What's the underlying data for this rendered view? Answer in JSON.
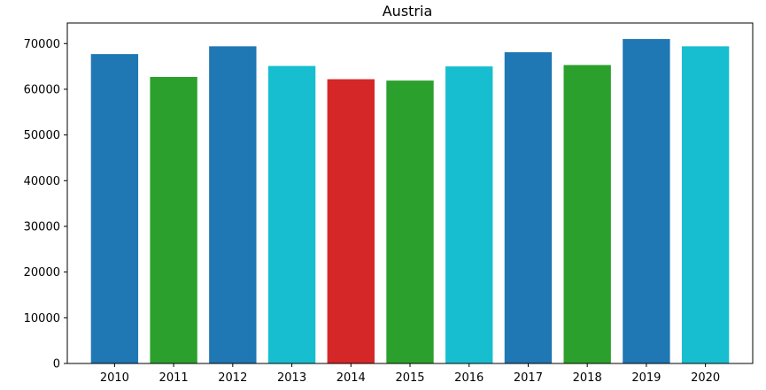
{
  "chart_data": {
    "type": "bar",
    "title": "Austria",
    "xlabel": "",
    "ylabel": "",
    "categories": [
      "2010",
      "2011",
      "2012",
      "2013",
      "2014",
      "2015",
      "2016",
      "2017",
      "2018",
      "2019",
      "2020"
    ],
    "values": [
      67700,
      62700,
      69400,
      65100,
      62200,
      61900,
      65000,
      68100,
      65300,
      71000,
      69400
    ],
    "bar_colors": [
      "#1f77b4",
      "#2ca02c",
      "#1f77b4",
      "#17becf",
      "#d62728",
      "#2ca02c",
      "#17becf",
      "#1f77b4",
      "#2ca02c",
      "#1f77b4",
      "#17becf"
    ],
    "ylim": [
      0,
      74500
    ],
    "yticks": [
      0,
      10000,
      20000,
      30000,
      40000,
      50000,
      60000,
      70000
    ],
    "grid": false,
    "legend": "none"
  }
}
